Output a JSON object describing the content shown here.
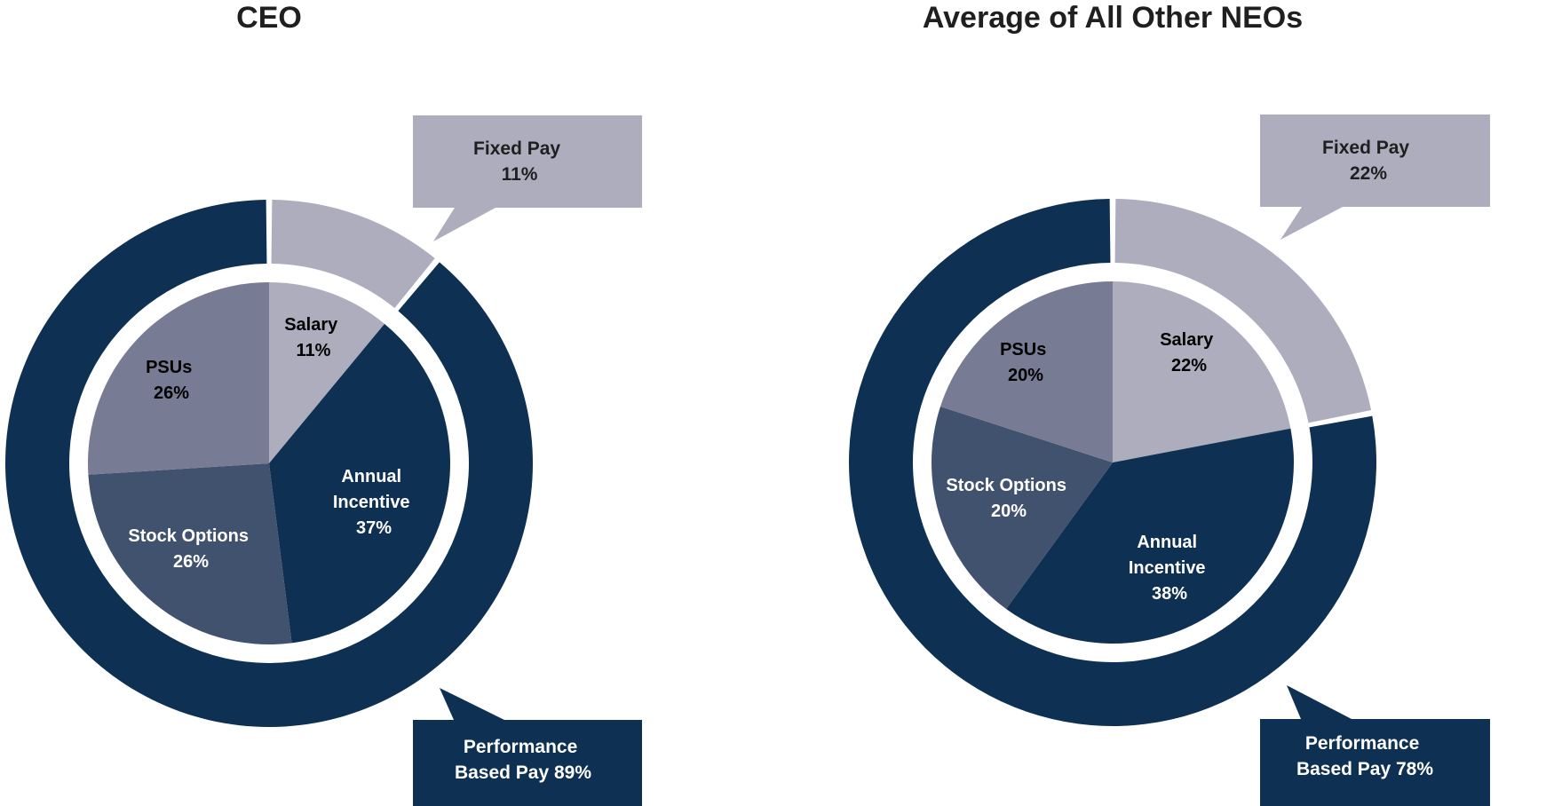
{
  "colors": {
    "navy": "#0e3052",
    "salary": "#adadbe",
    "psus": "#787b94",
    "stock_options": "#41526f",
    "fixed_pay": "#adadbe",
    "dark_text": "#1f1f1f",
    "light_text": "#ffffff"
  },
  "chart_data": [
    {
      "type": "pie",
      "title": "CEO",
      "slices": [
        {
          "label": "Salary",
          "value": 11,
          "value_text": "11%",
          "color": "#adadbe",
          "text_color": "#1f1f1f"
        },
        {
          "label": "Annual Incentive",
          "value": 37,
          "value_text": "37%",
          "color": "#0e3052",
          "text_color": "#ffffff"
        },
        {
          "label": "Stock Options",
          "value": 26,
          "value_text": "26%",
          "color": "#41526f",
          "text_color": "#ffffff"
        },
        {
          "label": "PSUs",
          "value": 26,
          "value_text": "26%",
          "color": "#787b94",
          "text_color": "#1f1f1f"
        }
      ],
      "ring": [
        {
          "label": "Fixed Pay",
          "value": 11,
          "value_text": "11%",
          "color": "#adadbe"
        },
        {
          "label": "Performance Based Pay",
          "value": 89,
          "value_text": "89%",
          "color": "#0e3052"
        }
      ],
      "callouts": {
        "fixed": {
          "line1": "Fixed Pay",
          "line2": "11%"
        },
        "performance": {
          "line1": "Performance",
          "line2": "Based Pay 89%"
        }
      }
    },
    {
      "type": "pie",
      "title": "Average of All Other NEOs",
      "slices": [
        {
          "label": "Salary",
          "value": 22,
          "value_text": "22%",
          "color": "#adadbe",
          "text_color": "#1f1f1f"
        },
        {
          "label": "Annual Incentive",
          "value": 38,
          "value_text": "38%",
          "color": "#0e3052",
          "text_color": "#ffffff"
        },
        {
          "label": "Stock Options",
          "value": 20,
          "value_text": "20%",
          "color": "#41526f",
          "text_color": "#ffffff"
        },
        {
          "label": "PSUs",
          "value": 20,
          "value_text": "20%",
          "color": "#787b94",
          "text_color": "#1f1f1f"
        }
      ],
      "ring": [
        {
          "label": "Fixed Pay",
          "value": 22,
          "value_text": "22%",
          "color": "#adadbe"
        },
        {
          "label": "Performance Based Pay",
          "value": 78,
          "value_text": "78%",
          "color": "#0e3052"
        }
      ],
      "callouts": {
        "fixed": {
          "line1": "Fixed Pay",
          "line2": "22%"
        },
        "performance": {
          "line1": "Performance",
          "line2": "Based Pay 78%"
        }
      }
    }
  ]
}
